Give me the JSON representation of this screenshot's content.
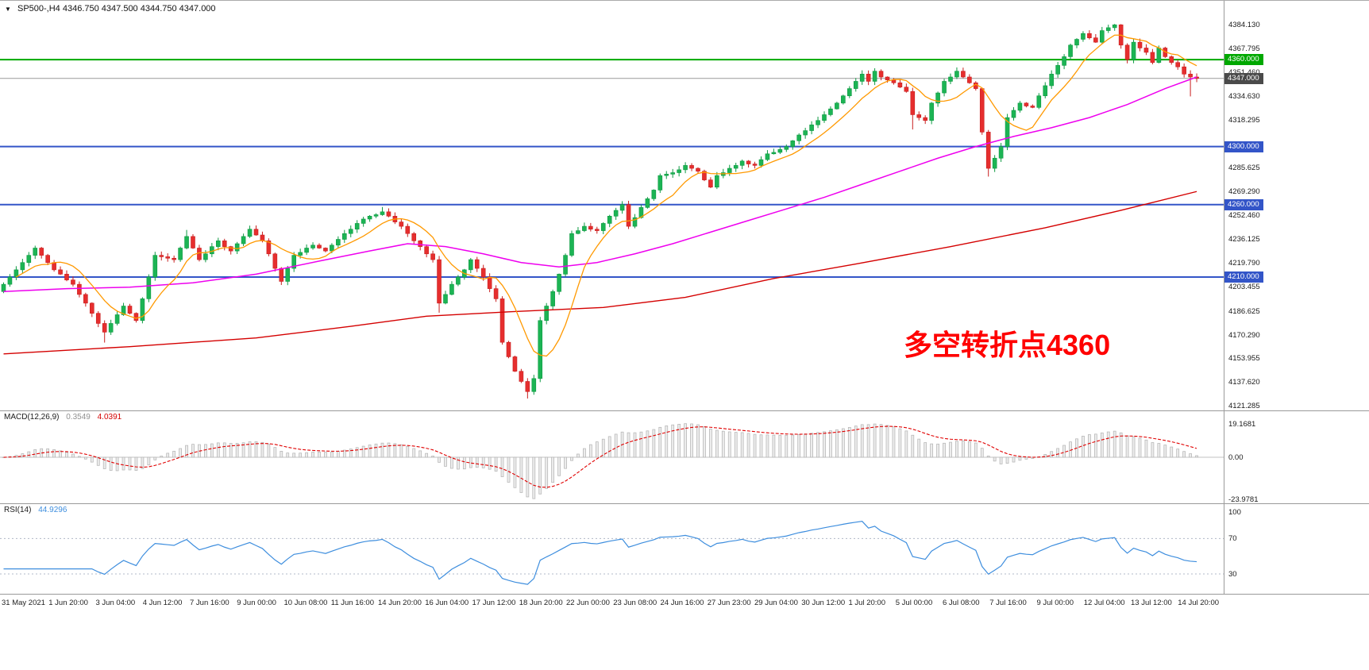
{
  "window": {
    "symbol_title": "SP500-,H4",
    "ohlc_line": "4346.750 4347.500 4344.750 4347.000"
  },
  "annotation": {
    "text": "多空转折点4360",
    "color": "#FF0000"
  },
  "chart_data": {
    "type": "candlestick",
    "title": "SP500- H4 candlestick chart with MACD and RSI",
    "timeframe": "H4",
    "ylim": [
      4121.285,
      4384.13
    ],
    "x_labels": [
      "31 May 2021",
      "1 Jun 20:00",
      "3 Jun 04:00",
      "4 Jun 12:00",
      "7 Jun 16:00",
      "9 Jun 00:00",
      "10 Jun 08:00",
      "11 Jun 16:00",
      "14 Jun 20:00",
      "16 Jun 04:00",
      "17 Jun 12:00",
      "18 Jun 20:00",
      "22 Jun 00:00",
      "23 Jun 08:00",
      "24 Jun 16:00",
      "27 Jun 23:00",
      "29 Jun 04:00",
      "30 Jun 12:00",
      "1 Jul 20:00",
      "5 Jul 00:00",
      "6 Jul 08:00",
      "7 Jul 16:00",
      "9 Jul 00:00",
      "12 Jul 04:00",
      "13 Jul 12:00",
      "14 Jul 20:00"
    ],
    "price_axis_labels": [
      "4384.130",
      "4367.795",
      "4351.460",
      "4334.630",
      "4318.295",
      "4285.625",
      "4269.290",
      "4252.460",
      "4236.125",
      "4219.790",
      "4203.455",
      "4186.625",
      "4170.290",
      "4153.955",
      "4137.620",
      "4121.285"
    ],
    "hlines": [
      {
        "price": 4360.0,
        "label": "4360.000",
        "color": "#00a800",
        "badge_bg": "#00a800",
        "width": 2
      },
      {
        "price": 4300.0,
        "label": "4300.000",
        "color": "#3355c8",
        "badge_bg": "#3355c8",
        "width": 2
      },
      {
        "price": 4260.0,
        "label": "4260.000",
        "color": "#3355c8",
        "badge_bg": "#3355c8",
        "width": 2
      },
      {
        "price": 4210.0,
        "label": "4210.000",
        "color": "#3355c8",
        "badge_bg": "#3355c8",
        "width": 2
      },
      {
        "price": 4347.0,
        "label": "4347.000",
        "color": "#9a9a9a",
        "badge_bg": "#4a4a4a",
        "width": 1
      }
    ],
    "candles": {
      "open_first": 4200,
      "closes": [
        4205,
        4210,
        4215,
        4220,
        4225,
        4230,
        4225,
        4220,
        4215,
        4212,
        4208,
        4205,
        4198,
        4192,
        4185,
        4178,
        4172,
        4178,
        4184,
        4190,
        4185,
        4180,
        4195,
        4210,
        4225,
        4224,
        4223,
        4222,
        4230,
        4238,
        4230,
        4222,
        4226,
        4231,
        4235,
        4231,
        4228,
        4233,
        4238,
        4243,
        4239,
        4235,
        4226,
        4216,
        4207,
        4216,
        4225,
        4227,
        4230,
        4232,
        4230,
        4228,
        4232,
        4236,
        4240,
        4243,
        4247,
        4250,
        4252,
        4253,
        4255,
        4252,
        4248,
        4245,
        4240,
        4235,
        4231,
        4226,
        4222,
        4192,
        4198,
        4205,
        4210,
        4215,
        4222,
        4216,
        4210,
        4202,
        4195,
        4165,
        4155,
        4145,
        4138,
        4131,
        4140,
        4180,
        4190,
        4200,
        4212,
        4225,
        4240,
        4242,
        4245,
        4243,
        4242,
        4247,
        4252,
        4256,
        4260,
        4245,
        4251,
        4258,
        4264,
        4270,
        4280,
        4281,
        4282,
        4284,
        4287,
        4285,
        4283,
        4277,
        4272,
        4280,
        4282,
        4285,
        4287,
        4290,
        4288,
        4287,
        4291,
        4295,
        4296,
        4298,
        4300,
        4304,
        4308,
        4311,
        4315,
        4318,
        4322,
        4326,
        4330,
        4335,
        4340,
        4345,
        4350,
        4345,
        4352,
        4348,
        4346,
        4344,
        4341,
        4338,
        4322,
        4320,
        4318,
        4330,
        4337,
        4345,
        4348,
        4352,
        4348,
        4344,
        4340,
        4310,
        4285,
        4292,
        4300,
        4320,
        4325,
        4330,
        4328,
        4327,
        4335,
        4342,
        4350,
        4356,
        4362,
        4370,
        4374,
        4378,
        4375,
        4372,
        4380,
        4382,
        4384,
        4370,
        4360,
        4372,
        4368,
        4365,
        4358,
        4368,
        4362,
        4358,
        4355,
        4350,
        4348,
        4347
      ]
    },
    "wick_overrides": {
      "16": {
        "l": 4164.8
      },
      "29": {
        "h": 4242.5
      },
      "60": {
        "h": 4258.3
      },
      "69": {
        "l": 4185.4
      },
      "83": {
        "l": 4126.2
      },
      "144": {
        "l": 4311.8
      },
      "156": {
        "l": 4279.3
      },
      "176": {
        "h": 4384.6
      },
      "188": {
        "l": 4334.6
      }
    },
    "candle_colors": {
      "up_fill": "#1cb454",
      "up_stroke": "#0e9a42",
      "down_fill": "#e62e2e",
      "down_stroke": "#c81e1e"
    },
    "moving_averages": {
      "fast": {
        "name": "fast-ma",
        "color": "#ff9900",
        "period": 8
      },
      "medium": {
        "name": "medium-ma",
        "color": "#ee00ee",
        "points": [
          [
            0,
            4200
          ],
          [
            10,
            4202
          ],
          [
            20,
            4203
          ],
          [
            30,
            4206
          ],
          [
            40,
            4212
          ],
          [
            50,
            4221
          ],
          [
            58,
            4228
          ],
          [
            64,
            4233
          ],
          [
            70,
            4231
          ],
          [
            76,
            4226
          ],
          [
            82,
            4220
          ],
          [
            88,
            4217
          ],
          [
            94,
            4220
          ],
          [
            100,
            4226
          ],
          [
            106,
            4233
          ],
          [
            112,
            4241
          ],
          [
            118,
            4249
          ],
          [
            124,
            4257
          ],
          [
            130,
            4265
          ],
          [
            136,
            4274
          ],
          [
            142,
            4283
          ],
          [
            148,
            4292
          ],
          [
            154,
            4300
          ],
          [
            160,
            4307
          ],
          [
            166,
            4313
          ],
          [
            172,
            4320
          ],
          [
            178,
            4329
          ],
          [
            184,
            4340
          ],
          [
            189,
            4348
          ]
        ]
      },
      "slow": {
        "name": "slow-ma",
        "color": "#d40000",
        "points": [
          [
            0,
            4157
          ],
          [
            20,
            4162
          ],
          [
            40,
            4168
          ],
          [
            55,
            4176
          ],
          [
            67,
            4183
          ],
          [
            80,
            4186
          ],
          [
            95,
            4189
          ],
          [
            108,
            4196
          ],
          [
            122,
            4209
          ],
          [
            135,
            4219
          ],
          [
            150,
            4231
          ],
          [
            165,
            4244
          ],
          [
            177,
            4256
          ],
          [
            189,
            4269
          ]
        ]
      }
    },
    "indicators": [
      {
        "id": "macd",
        "label": "MACD(12,26,9)",
        "values": [
          "0.3549",
          "4.0391"
        ],
        "axis": [
          "19.1681",
          "0.00",
          "-23.9781"
        ],
        "hist_fill": "#ececec",
        "hist_stroke": "#b5b5b5",
        "signal_color": "#e00000"
      },
      {
        "id": "rsi",
        "label": "RSI(14)",
        "values": [
          "44.9296"
        ],
        "axis": [
          "100",
          "70",
          "30"
        ],
        "levels": [
          70,
          30
        ],
        "line_color": "#3e8ede"
      }
    ]
  }
}
